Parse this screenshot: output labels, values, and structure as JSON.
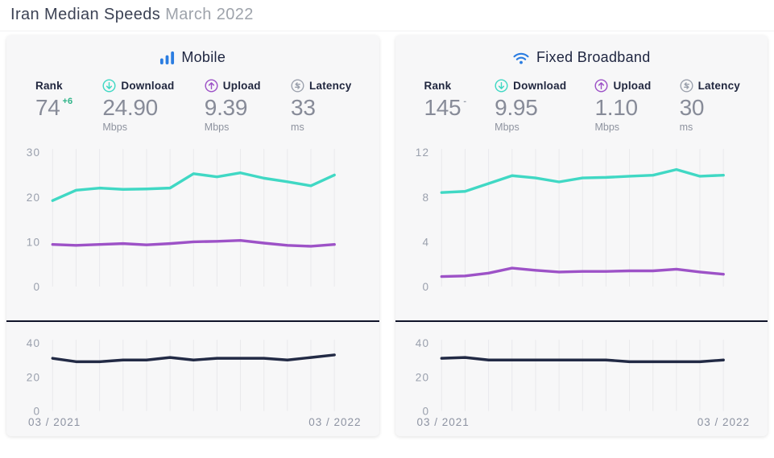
{
  "page": {
    "title_main": "Iran Median Speeds",
    "title_period": "March 2022"
  },
  "colors": {
    "accent_blue": "#2b7de1",
    "download_teal": "#40d8c4",
    "upload_purple": "#9d52c7",
    "latency_navy": "#222a45",
    "rank_up_green": "#2db387",
    "card_background": "#f7f7f8"
  },
  "cards": [
    {
      "title": "Mobile",
      "icon": "mobile-bars-icon",
      "stats": [
        {
          "label": "Rank",
          "value": "74",
          "badge": "+6",
          "unit": ""
        },
        {
          "label": "Download",
          "icon": "download-icon",
          "value": "24.90",
          "unit": "Mbps"
        },
        {
          "label": "Upload",
          "icon": "upload-icon",
          "value": "9.39",
          "unit": "Mbps"
        },
        {
          "label": "Latency",
          "icon": "latency-icon",
          "value": "33",
          "unit": "ms"
        }
      ],
      "x_start": "03 / 2021",
      "x_end": "03 / 2022"
    },
    {
      "title": "Fixed Broadband",
      "icon": "wifi-icon",
      "stats": [
        {
          "label": "Rank",
          "value": "145",
          "badge": "-",
          "unit": ""
        },
        {
          "label": "Download",
          "icon": "download-icon",
          "value": "9.95",
          "unit": "Mbps"
        },
        {
          "label": "Upload",
          "icon": "upload-icon",
          "value": "1.10",
          "unit": "Mbps"
        },
        {
          "label": "Latency",
          "icon": "latency-icon",
          "value": "30",
          "unit": "ms"
        }
      ],
      "x_start": "03 / 2021",
      "x_end": "03 / 2022"
    }
  ],
  "chart_data": [
    {
      "type": "line",
      "name": "mobile-speeds",
      "x_ticks": [
        "03 / 2021",
        "03 / 2022"
      ],
      "months": 13,
      "ylim": [
        0,
        30
      ],
      "yticks": [
        0,
        10,
        20,
        30
      ],
      "grid": true,
      "legend": "none",
      "series": [
        {
          "name": "download-mbps",
          "color": "#40d8c4",
          "values": [
            19.2,
            21.5,
            22,
            21.7,
            21.8,
            22,
            25.2,
            24.5,
            25.4,
            24.2,
            23.4,
            22.5,
            24.9
          ]
        },
        {
          "name": "upload-mbps",
          "color": "#9d52c7",
          "values": [
            9.4,
            9.2,
            9.4,
            9.6,
            9.3,
            9.6,
            10,
            10.1,
            10.3,
            9.7,
            9.2,
            9,
            9.39
          ]
        }
      ]
    },
    {
      "type": "line",
      "name": "mobile-latency",
      "x_ticks": [
        "03 / 2021",
        "03 / 2022"
      ],
      "months": 13,
      "ylim": [
        0,
        40
      ],
      "yticks": [
        0,
        20,
        40
      ],
      "grid": true,
      "legend": "none",
      "series": [
        {
          "name": "latency-ms",
          "color": "#222a45",
          "values": [
            31,
            29,
            29,
            30,
            30,
            31.5,
            30,
            31,
            31,
            31,
            30,
            31.5,
            33
          ]
        }
      ]
    },
    {
      "type": "line",
      "name": "fixed-broadband-speeds",
      "x_ticks": [
        "03 / 2021",
        "03 / 2022"
      ],
      "months": 13,
      "ylim": [
        0,
        12
      ],
      "yticks": [
        0,
        4,
        8,
        12
      ],
      "grid": true,
      "legend": "none",
      "series": [
        {
          "name": "download-mbps",
          "color": "#40d8c4",
          "values": [
            8.4,
            8.5,
            9.2,
            9.9,
            9.7,
            9.35,
            9.7,
            9.75,
            9.85,
            9.95,
            10.45,
            9.85,
            9.95
          ]
        },
        {
          "name": "upload-mbps",
          "color": "#9d52c7",
          "values": [
            0.9,
            0.95,
            1.2,
            1.65,
            1.45,
            1.3,
            1.35,
            1.35,
            1.4,
            1.4,
            1.55,
            1.3,
            1.1
          ]
        }
      ]
    },
    {
      "type": "line",
      "name": "fixed-broadband-latency",
      "x_ticks": [
        "03 / 2021",
        "03 / 2022"
      ],
      "months": 13,
      "ylim": [
        0,
        40
      ],
      "yticks": [
        0,
        20,
        40
      ],
      "grid": true,
      "legend": "none",
      "series": [
        {
          "name": "latency-ms",
          "color": "#222a45",
          "values": [
            31,
            31.5,
            30,
            30,
            30,
            30,
            30,
            30,
            29,
            29,
            29,
            29,
            30
          ]
        }
      ]
    }
  ]
}
